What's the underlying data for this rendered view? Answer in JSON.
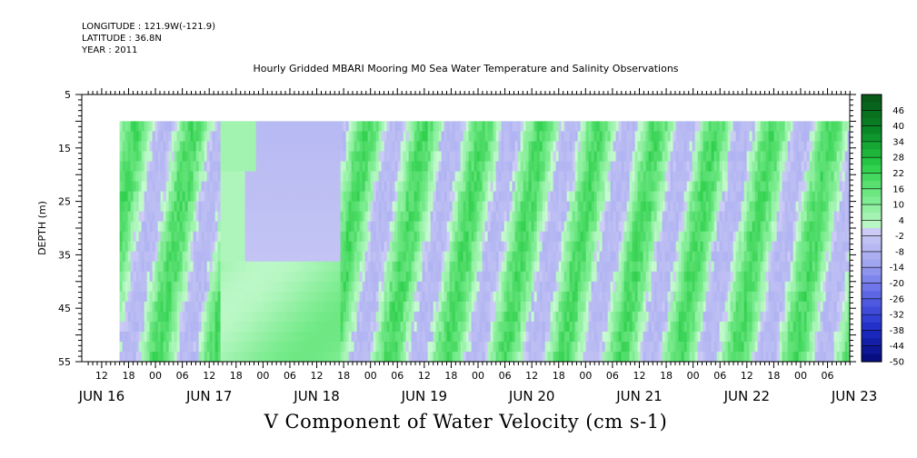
{
  "header": {
    "longitude": "LONGITUDE : 121.9W(-121.9)",
    "latitude": "LATITUDE : 36.8N",
    "year": "YEAR : 2011"
  },
  "title": "Hourly Gridded MBARI Mooring M0 Sea Water Temperature and Salinity Observations",
  "chart_data": {
    "type": "heatmap",
    "title": "Hourly Gridded MBARI Mooring M0 Sea Water Temperature and Salinity Observations",
    "xlabel": "V Component of Water Velocity (cm s-1)",
    "ylabel": "DEPTH (m)",
    "ylim": [
      55,
      5
    ],
    "yticks": [
      "5",
      "15",
      "25",
      "35",
      "45",
      "55"
    ],
    "x_hour_labels": [
      "12",
      "18",
      "00",
      "06",
      "12",
      "18",
      "00",
      "06",
      "12",
      "18",
      "00",
      "06",
      "12",
      "18",
      "00",
      "06",
      "12",
      "18",
      "00",
      "06",
      "12",
      "18",
      "00",
      "06",
      "12",
      "18",
      "00",
      "06"
    ],
    "x_day_labels": [
      "JUN 16",
      "JUN 17",
      "JUN 18",
      "JUN 19",
      "JUN 20",
      "JUN 21",
      "JUN 22",
      "JUN 23"
    ],
    "data_extent": {
      "start": "JUN 16 16:00",
      "end": "JUN 23 11:00",
      "depth_min": 10,
      "depth_max": 55
    },
    "colorbar": {
      "labels": [
        "46",
        "40",
        "34",
        "28",
        "22",
        "16",
        "10",
        "4",
        "-2",
        "-8",
        "-14",
        "-20",
        "-26",
        "-32",
        "-38",
        "-44",
        "-50"
      ],
      "range": [
        -50,
        52
      ]
    },
    "colors": {
      "high": "#21c84a",
      "pale_green": "#a8f5b0",
      "neg": "#a6a8f0",
      "fill": "#8fe8a0"
    },
    "field_phases": [
      {
        "from": "JUN 16 16:00",
        "to": "JUN 17 14:00",
        "pattern": "alternating green/blue bands"
      },
      {
        "from": "JUN 17 14:00",
        "to": "JUN 18 17:00",
        "pattern": "smooth interpolated gap"
      },
      {
        "from": "JUN 18 17:00",
        "to": "JUN 23 11:00",
        "pattern": "alternating green/blue bands"
      }
    ]
  }
}
